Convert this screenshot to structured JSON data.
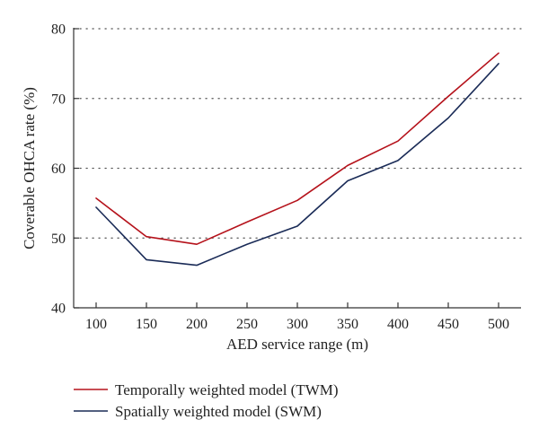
{
  "chart_data": {
    "type": "line",
    "xlabel": "AED service range (m)",
    "ylabel": "Coverable OHCA rate (%)",
    "x": [
      100,
      150,
      200,
      250,
      300,
      350,
      400,
      450,
      500
    ],
    "xlim": [
      100,
      500
    ],
    "ylim": [
      40,
      80
    ],
    "yticks": [
      40,
      50,
      60,
      70,
      80
    ],
    "grid": "horizontal-dotted",
    "legend_position": "bottom",
    "series": [
      {
        "name": "Temporally weighted model (TWM)",
        "color": "#b5121b",
        "values": [
          55.7,
          50.2,
          49.1,
          52.3,
          55.4,
          60.4,
          63.9,
          70.3,
          76.5
        ]
      },
      {
        "name": "Spatially weighted model (SWM)",
        "color": "#1a2b57",
        "values": [
          54.4,
          46.9,
          46.1,
          49.1,
          51.7,
          58.2,
          61.1,
          67.2,
          75.0
        ]
      }
    ]
  }
}
